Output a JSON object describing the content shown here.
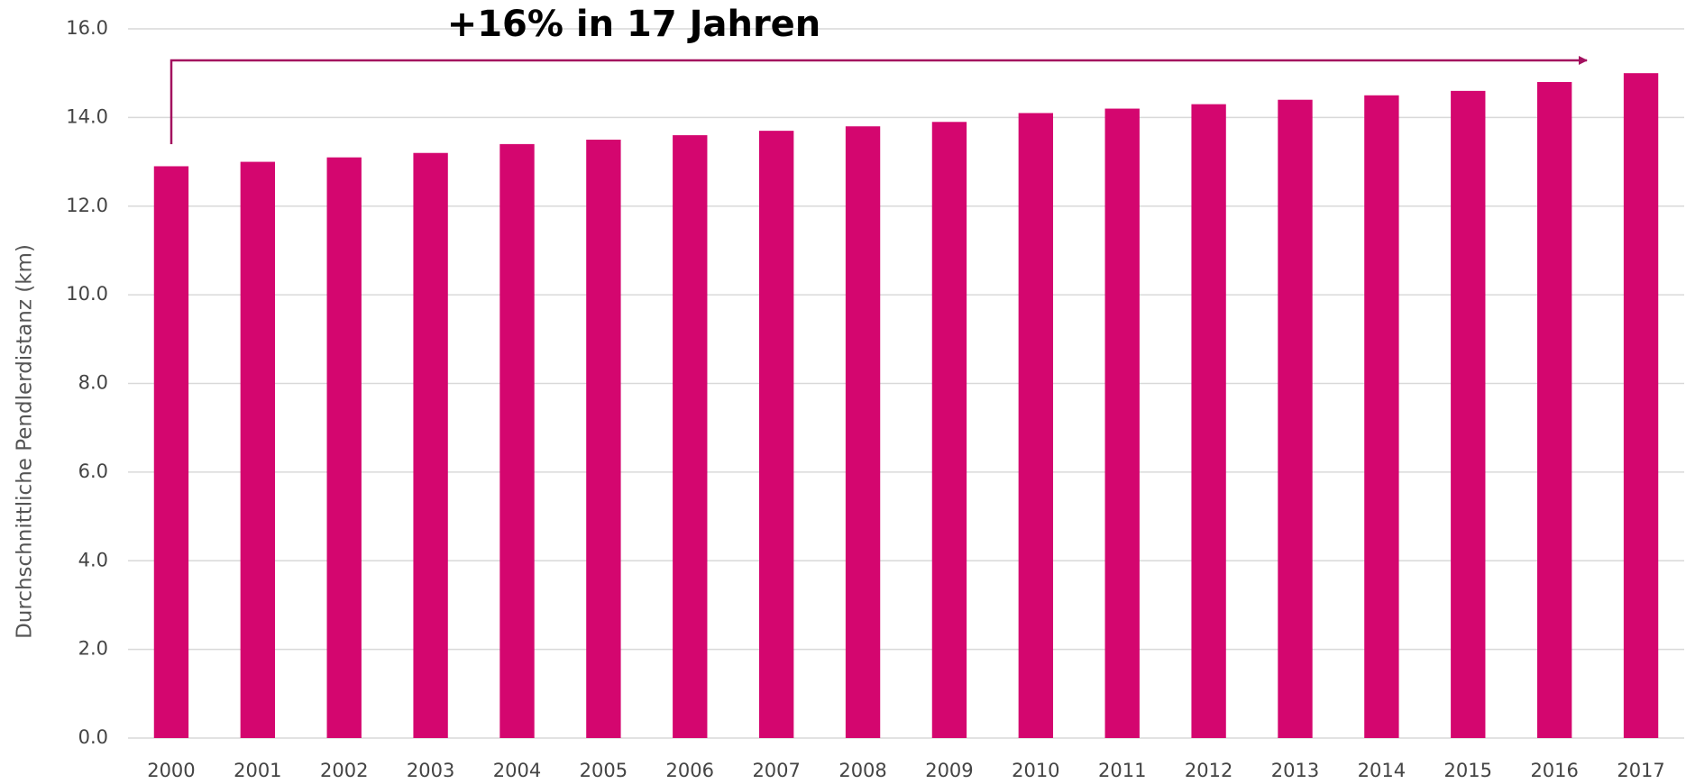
{
  "chart_data": {
    "type": "bar",
    "title": "+16% in 17 Jahren",
    "y_label": "Durchschnittliche Pendlerdistanz (km)",
    "categories": [
      "2000",
      "2001",
      "2002",
      "2003",
      "2004",
      "2005",
      "2006",
      "2007",
      "2008",
      "2009",
      "2010",
      "2011",
      "2012",
      "2013",
      "2014",
      "2015",
      "2016",
      "2017"
    ],
    "values": [
      12.9,
      13.0,
      13.1,
      13.2,
      13.4,
      13.5,
      13.6,
      13.7,
      13.8,
      13.9,
      14.1,
      14.2,
      14.3,
      14.4,
      14.5,
      14.6,
      14.8,
      15.0
    ],
    "color": "#d4066f",
    "ylim": [
      0,
      16
    ],
    "yticks": [
      {
        "value": 0,
        "label": "0.0"
      },
      {
        "value": 2,
        "label": "2.0"
      },
      {
        "value": 4,
        "label": "4.0"
      },
      {
        "value": 6,
        "label": "6.0"
      },
      {
        "value": 8,
        "label": "8.0"
      },
      {
        "value": 10,
        "label": "10.0"
      },
      {
        "value": 12,
        "label": "12.0"
      },
      {
        "value": 14,
        "label": "14.0"
      },
      {
        "value": 16,
        "label": "16.0"
      }
    ],
    "grid": true
  }
}
